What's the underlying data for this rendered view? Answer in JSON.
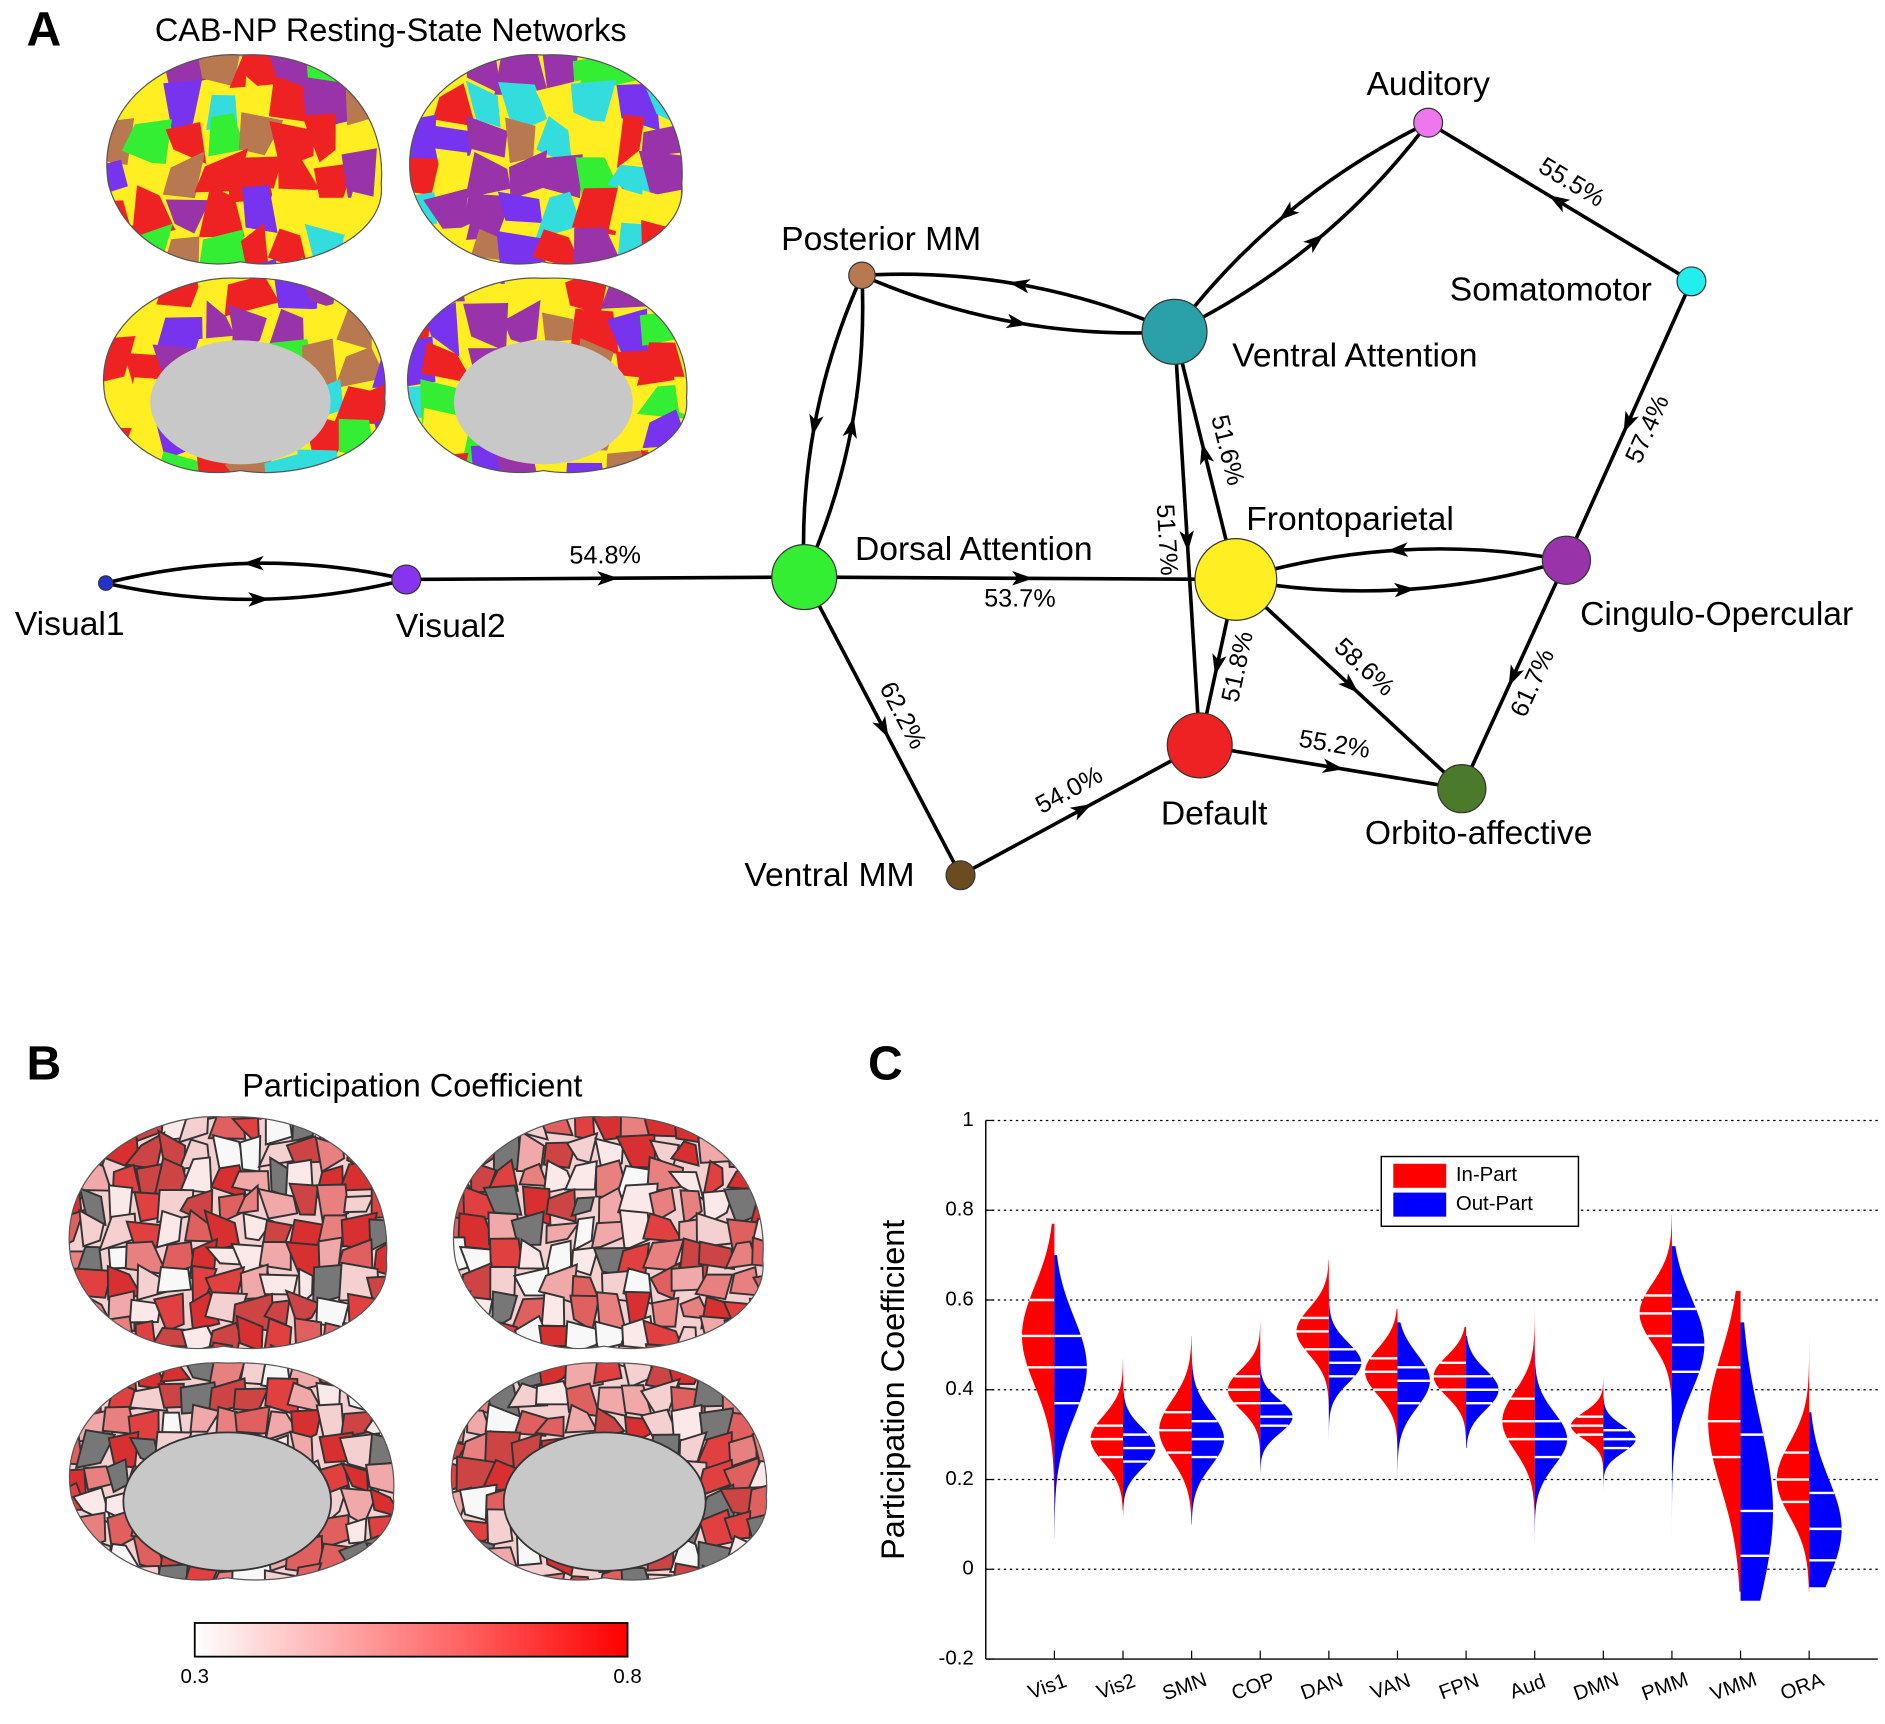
{
  "panel_a": {
    "label": "A",
    "title": "CAB-NP Resting-State Networks",
    "nodes": [
      {
        "name": "Visual1",
        "color": "#2233cc"
      },
      {
        "name": "Visual2",
        "color": "#8833ee"
      },
      {
        "name": "Dorsal Attention",
        "color": "#33ee33"
      },
      {
        "name": "Posterior MM",
        "color": "#b87850"
      },
      {
        "name": "Ventral Attention",
        "color": "#2aa0a8"
      },
      {
        "name": "Auditory",
        "color": "#ee77ee"
      },
      {
        "name": "Somatomotor",
        "color": "#22eeee"
      },
      {
        "name": "Frontoparietal",
        "color": "#ffee22"
      },
      {
        "name": "Cingulo-Opercular",
        "color": "#9933aa"
      },
      {
        "name": "Default",
        "color": "#ee2222"
      },
      {
        "name": "Orbito-affective",
        "color": "#4a7a2a"
      },
      {
        "name": "Ventral MM",
        "color": "#6b4c20"
      }
    ],
    "edges": [
      {
        "from": "Visual1",
        "to": "Visual2"
      },
      {
        "from": "Visual2",
        "to": "Visual1"
      },
      {
        "from": "Visual2",
        "to": "Dorsal Attention",
        "label": "54.8%"
      },
      {
        "from": "Dorsal Attention",
        "to": "Posterior MM"
      },
      {
        "from": "Posterior MM",
        "to": "Dorsal Attention"
      },
      {
        "from": "Posterior MM",
        "to": "Ventral Attention"
      },
      {
        "from": "Ventral Attention",
        "to": "Posterior MM"
      },
      {
        "from": "Ventral Attention",
        "to": "Auditory"
      },
      {
        "from": "Auditory",
        "to": "Ventral Attention"
      },
      {
        "from": "Somatomotor",
        "to": "Auditory",
        "label": "55.5%"
      },
      {
        "from": "Somatomotor",
        "to": "Cingulo-Opercular",
        "label": "57.4%"
      },
      {
        "from": "Dorsal Attention",
        "to": "Frontoparietal",
        "label": "53.7%"
      },
      {
        "from": "Frontoparietal",
        "to": "Cingulo-Opercular"
      },
      {
        "from": "Cingulo-Opercular",
        "to": "Frontoparietal"
      },
      {
        "from": "Ventral Attention",
        "to": "Default",
        "label": "51.7%"
      },
      {
        "from": "Frontoparietal",
        "to": "Ventral Attention",
        "label": "51.6%"
      },
      {
        "from": "Frontoparietal",
        "to": "Default",
        "label": "51.8%"
      },
      {
        "from": "Frontoparietal",
        "to": "Orbito-affective",
        "label": "58.6%"
      },
      {
        "from": "Default",
        "to": "Orbito-affective",
        "label": "55.2%"
      },
      {
        "from": "Cingulo-Opercular",
        "to": "Orbito-affective",
        "label": "61.7%"
      },
      {
        "from": "Dorsal Attention",
        "to": "Ventral MM",
        "label": "62.2%"
      },
      {
        "from": "Ventral MM",
        "to": "Default",
        "label": "54.0%"
      }
    ]
  },
  "panel_b": {
    "label": "B",
    "title": "Participation Coefficient",
    "colorbar": {
      "ticks": [
        0.3,
        0.8
      ],
      "colors": [
        "#ffffff",
        "#ff0000"
      ]
    }
  },
  "chart_data": {
    "type": "violin",
    "panel_label": "C",
    "ylabel": "Participation Coefficient",
    "categories": [
      "Vis1",
      "Vis2",
      "SMN",
      "COP",
      "DAN",
      "VAN",
      "FPN",
      "Aud",
      "DMN",
      "PMM",
      "VMM",
      "ORA"
    ],
    "ylim": [
      -0.2,
      1
    ],
    "yticks": [
      -0.2,
      0,
      0.2,
      0.4,
      0.6,
      0.8,
      1
    ],
    "grid": true,
    "legend": "upper center",
    "series": [
      {
        "name": "In-Part",
        "color": "#ff0000",
        "values": [
          0.52,
          0.29,
          0.31,
          0.4,
          0.53,
          0.44,
          0.43,
          0.33,
          0.32,
          0.57,
          0.33,
          0.2
        ],
        "q1": [
          0.45,
          0.25,
          0.26,
          0.37,
          0.49,
          0.4,
          0.4,
          0.29,
          0.3,
          0.52,
          0.25,
          0.15
        ],
        "q3": [
          0.6,
          0.32,
          0.35,
          0.43,
          0.56,
          0.47,
          0.46,
          0.38,
          0.34,
          0.61,
          0.45,
          0.26
        ],
        "min": [
          0.07,
          0.13,
          0.1,
          0.22,
          0.3,
          0.2,
          0.29,
          0.06,
          0.2,
          0.06,
          -0.05,
          -0.05
        ],
        "max": [
          0.77,
          0.47,
          0.52,
          0.55,
          0.69,
          0.58,
          0.54,
          0.63,
          0.43,
          0.79,
          0.62,
          0.6
        ]
      },
      {
        "name": "Out-Part",
        "color": "#0000ff",
        "values": [
          0.45,
          0.27,
          0.29,
          0.34,
          0.46,
          0.42,
          0.4,
          0.29,
          0.29,
          0.5,
          0.13,
          0.09
        ],
        "q1": [
          0.37,
          0.24,
          0.25,
          0.32,
          0.43,
          0.37,
          0.37,
          0.25,
          0.27,
          0.44,
          0.03,
          0.02
        ],
        "q3": [
          0.52,
          0.3,
          0.33,
          0.37,
          0.49,
          0.45,
          0.43,
          0.33,
          0.31,
          0.58,
          0.3,
          0.17
        ],
        "min": [
          0.07,
          0.12,
          0.1,
          0.2,
          0.28,
          0.17,
          0.27,
          0.06,
          0.17,
          0.07,
          -0.07,
          -0.04
        ],
        "max": [
          0.7,
          0.45,
          0.5,
          0.52,
          0.62,
          0.55,
          0.52,
          0.58,
          0.42,
          0.72,
          0.55,
          0.35
        ]
      }
    ]
  }
}
